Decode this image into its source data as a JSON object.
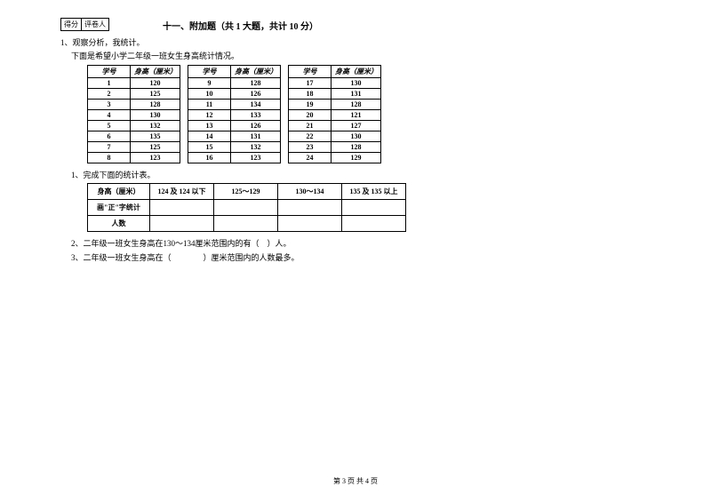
{
  "scoreBox": {
    "left": "得分",
    "right": "评卷人"
  },
  "section": {
    "title": "十一、附加题（共 1 大题，共计 10 分）"
  },
  "intro": {
    "line1": "1、观察分析，我统计。",
    "line2": "下面是希望小学二年级一班女生身高统计情况。"
  },
  "dataTable": {
    "headers": {
      "id": "学号",
      "height": "身高（厘米）"
    },
    "group1": [
      {
        "id": "1",
        "h": "120"
      },
      {
        "id": "2",
        "h": "125"
      },
      {
        "id": "3",
        "h": "128"
      },
      {
        "id": "4",
        "h": "130"
      },
      {
        "id": "5",
        "h": "132"
      },
      {
        "id": "6",
        "h": "135"
      },
      {
        "id": "7",
        "h": "125"
      },
      {
        "id": "8",
        "h": "123"
      }
    ],
    "group2": [
      {
        "id": "9",
        "h": "128"
      },
      {
        "id": "10",
        "h": "126"
      },
      {
        "id": "11",
        "h": "134"
      },
      {
        "id": "12",
        "h": "133"
      },
      {
        "id": "13",
        "h": "126"
      },
      {
        "id": "14",
        "h": "131"
      },
      {
        "id": "15",
        "h": "132"
      },
      {
        "id": "16",
        "h": "123"
      }
    ],
    "group3": [
      {
        "id": "17",
        "h": "130"
      },
      {
        "id": "18",
        "h": "131"
      },
      {
        "id": "19",
        "h": "128"
      },
      {
        "id": "20",
        "h": "121"
      },
      {
        "id": "21",
        "h": "127"
      },
      {
        "id": "22",
        "h": "130"
      },
      {
        "id": "23",
        "h": "128"
      },
      {
        "id": "24",
        "h": "129"
      }
    ]
  },
  "q1": "1、完成下面的统计表。",
  "summaryTable": {
    "rowLabels": {
      "r1": "身高（厘米）",
      "r2": "画\"正\"字统计",
      "r3": "人数"
    },
    "cols": {
      "c1": "124 及 124 以下",
      "c2": "125～129",
      "c3": "130～134",
      "c4": "135 及 135 以上"
    }
  },
  "q2": "2、二年级一班女生身高在130～134厘米范围内的有（　）人。",
  "q3": "3、二年级一班女生身高在（　　　　）厘米范围内的人数最多。",
  "footer": "第 3 页 共 4 页"
}
